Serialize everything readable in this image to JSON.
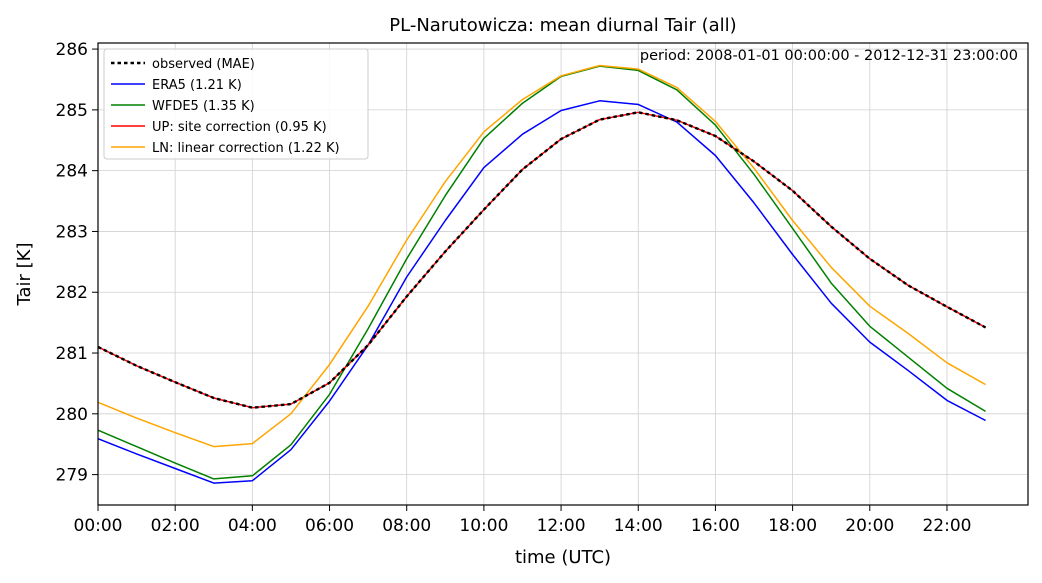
{
  "chart_data": {
    "type": "line",
    "title": "PL-Narutowicza: mean diurnal Tair (all)",
    "annotation": "period: 2008-01-01 00:00:00 - 2012-12-31 23:00:00",
    "xlabel": "time (UTC)",
    "ylabel": "Tair [K]",
    "xlim": [
      0,
      24.1
    ],
    "ylim": [
      278.5,
      286.1
    ],
    "grid": true,
    "legend_position": "top-left",
    "x": [
      0,
      1,
      2,
      3,
      4,
      5,
      6,
      7,
      8,
      9,
      10,
      11,
      12,
      13,
      14,
      15,
      16,
      17,
      18,
      19,
      20,
      21,
      22,
      23
    ],
    "xticks": [
      0,
      2,
      4,
      6,
      8,
      10,
      12,
      14,
      16,
      18,
      20,
      22
    ],
    "xtick_labels": [
      "00:00",
      "02:00",
      "04:00",
      "06:00",
      "08:00",
      "10:00",
      "12:00",
      "14:00",
      "16:00",
      "18:00",
      "20:00",
      "22:00"
    ],
    "yticks": [
      279,
      280,
      281,
      282,
      283,
      284,
      285,
      286
    ],
    "ytick_labels": [
      "279",
      "280",
      "281",
      "282",
      "283",
      "284",
      "285",
      "286"
    ],
    "series": [
      {
        "name": "ERA5 (1.21 K)",
        "color": "#0000ff",
        "dash": "solid",
        "values": [
          279.59,
          279.34,
          279.1,
          278.86,
          278.9,
          279.41,
          280.21,
          281.13,
          282.25,
          283.18,
          284.05,
          284.6,
          284.99,
          285.15,
          285.09,
          284.8,
          284.25,
          283.47,
          282.62,
          281.82,
          281.18,
          280.71,
          280.22,
          279.89
        ]
      },
      {
        "name": "WFDE5 (1.35 K)",
        "color": "#008000",
        "dash": "solid",
        "values": [
          279.73,
          279.46,
          279.19,
          278.93,
          278.98,
          279.49,
          280.32,
          281.4,
          282.55,
          283.59,
          284.53,
          285.11,
          285.55,
          285.72,
          285.65,
          285.33,
          284.75,
          283.94,
          283.05,
          282.15,
          281.44,
          280.93,
          280.42,
          280.04
        ]
      },
      {
        "name": "UP: site correction (0.95 K)",
        "color": "#ff0000",
        "dash": "solid",
        "values": [
          281.1,
          280.79,
          280.52,
          280.26,
          280.1,
          280.16,
          280.51,
          281.13,
          281.93,
          282.67,
          283.36,
          284.02,
          284.52,
          284.84,
          284.96,
          284.83,
          284.57,
          284.15,
          283.67,
          283.08,
          282.55,
          282.11,
          281.76,
          281.42
        ]
      },
      {
        "name": "LN: linear correction (1.22 K)",
        "color": "#ffa500",
        "dash": "solid",
        "values": [
          280.19,
          279.93,
          279.69,
          279.46,
          279.51,
          280.0,
          280.81,
          281.77,
          282.86,
          283.82,
          284.64,
          285.17,
          285.56,
          285.73,
          285.67,
          285.37,
          284.81,
          284.04,
          283.18,
          282.41,
          281.77,
          281.32,
          280.84,
          280.48
        ]
      },
      {
        "name": "observed (MAE)",
        "color": "#000000",
        "dash": "dotted",
        "values": [
          281.1,
          280.79,
          280.52,
          280.26,
          280.1,
          280.16,
          280.51,
          281.13,
          281.93,
          282.67,
          283.36,
          284.02,
          284.52,
          284.84,
          284.96,
          284.83,
          284.57,
          284.15,
          283.67,
          283.08,
          282.55,
          282.11,
          281.76,
          281.42
        ]
      }
    ],
    "legend_order": [
      "observed (MAE)",
      "ERA5 (1.21 K)",
      "WFDE5 (1.35 K)",
      "UP: site correction (0.95 K)",
      "LN: linear correction (1.22 K)"
    ]
  }
}
